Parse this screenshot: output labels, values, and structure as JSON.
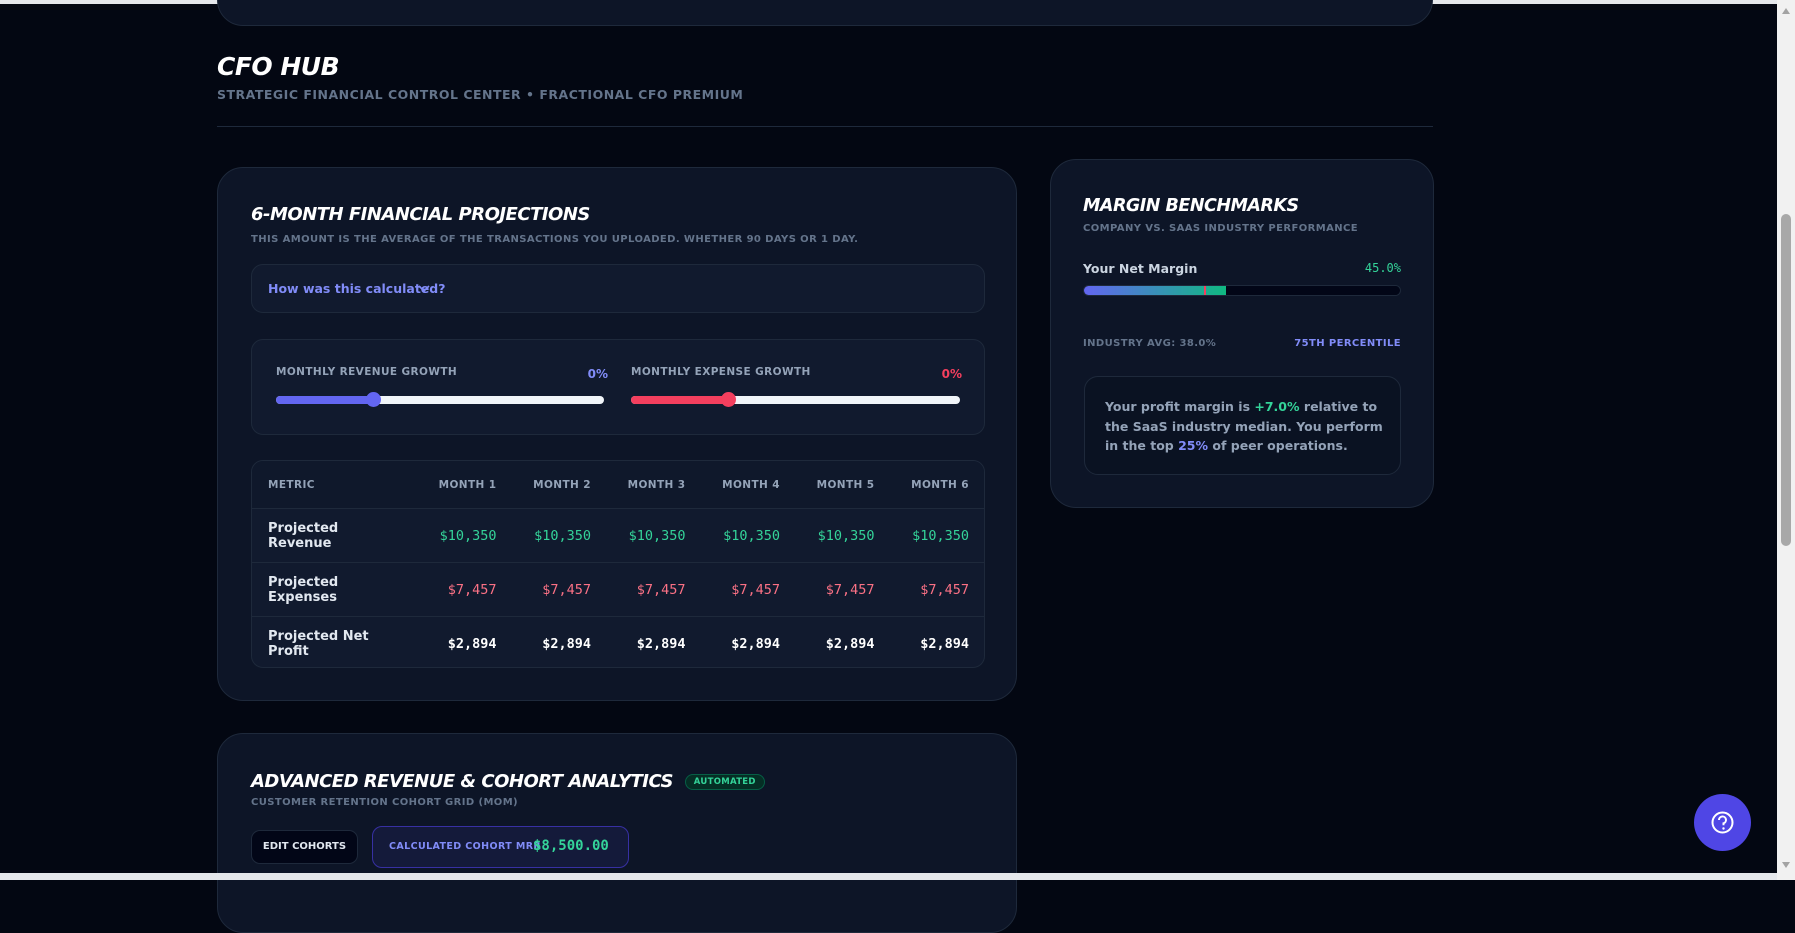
{
  "header": {
    "title": "CFO HUB",
    "subtitle": "STRATEGIC FINANCIAL CONTROL CENTER • FRACTIONAL CFO PREMIUM"
  },
  "projections": {
    "title": "6-MONTH FINANCIAL PROJECTIONS",
    "note": "THIS AMOUNT IS THE AVERAGE OF THE TRANSACTIONS YOU UPLOADED. WHETHER 90 DAYS OR 1 DAY.",
    "accordion": "How was this calculated?",
    "sliders": [
      {
        "label": "MONTHLY REVENUE GROWTH",
        "value": "0%"
      },
      {
        "label": "MONTHLY EXPENSE GROWTH",
        "value": "0%"
      }
    ],
    "table": {
      "header": [
        "METRIC",
        "MONTH 1",
        "MONTH 2",
        "MONTH 3",
        "MONTH 4",
        "MONTH 5",
        "MONTH 6"
      ],
      "rows": [
        [
          "Projected Revenue",
          "$10,350",
          "$10,350",
          "$10,350",
          "$10,350",
          "$10,350",
          "$10,350"
        ],
        [
          "Projected Expenses",
          "$7,457",
          "$7,457",
          "$7,457",
          "$7,457",
          "$7,457",
          "$7,457"
        ],
        [
          "Projected Net Profit",
          "$2,894",
          "$2,894",
          "$2,894",
          "$2,894",
          "$2,894",
          "$2,894"
        ]
      ]
    }
  },
  "benchmarks": {
    "title": "MARGIN BENCHMARKS",
    "subtitle": "COMPANY VS. SAAS INDUSTRY PERFORMANCE",
    "metric_label": "Your Net Margin",
    "metric_value": "45.0%",
    "industry_avg": "INDUSTRY AVG: 38.0%",
    "percentile": "75TH PERCENTILE",
    "insight": [
      "Your profit margin is ",
      "+7.0%",
      " relative to the SaaS industry median. You perform in the top ",
      "25%",
      " of peer operations."
    ]
  },
  "cohorts": {
    "title": "ADVANCED REVENUE & COHORT ANALYTICS",
    "badge": "AUTOMATED",
    "subtitle": "CUSTOMER RETENTION COHORT GRID (MOM)",
    "edit_button": "EDIT COHORTS",
    "mrr_label": "CALCULATED COHORT MRR",
    "mrr_value": "$8,500.00"
  }
}
